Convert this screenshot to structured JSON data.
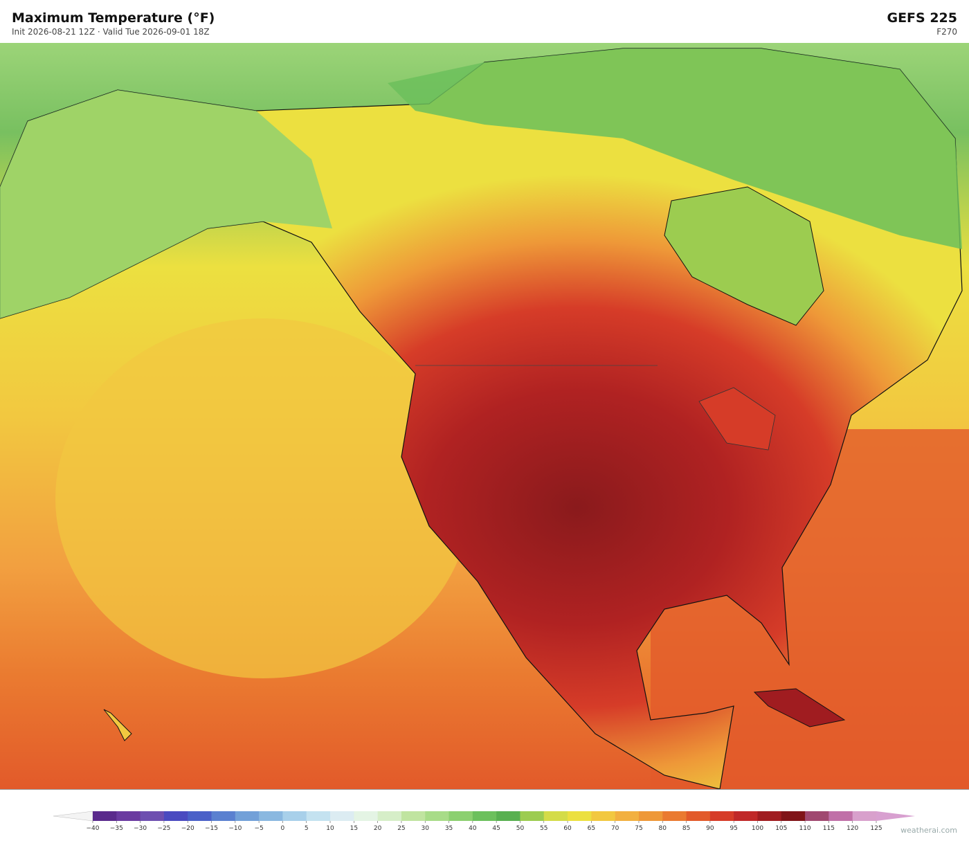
{
  "header": {
    "title": "Maximum Temperature  (°F)",
    "subtitle": "Init 2026-08-21 12Z   ·   Valid Tue 2026-09-01 18Z",
    "model": "GEFS  225",
    "forecast_hour": "F270"
  },
  "colorbar": {
    "labels": [
      "−40",
      "−35",
      "−30",
      "−25",
      "−20",
      "−15",
      "−10",
      "−5",
      "0",
      "5",
      "10",
      "15",
      "20",
      "25",
      "30",
      "35",
      "40",
      "45",
      "50",
      "55",
      "60",
      "65",
      "70",
      "75",
      "80",
      "85",
      "90",
      "95",
      "100",
      "105",
      "110",
      "115",
      "120",
      "125"
    ],
    "colors": [
      "#f4f4f4",
      "#5a2a8c",
      "#6a3aa0",
      "#6e4fb0",
      "#4a4ac0",
      "#4a60c8",
      "#5a80d0",
      "#72a0d8",
      "#8ab8e0",
      "#a8d0ea",
      "#c4e2f0",
      "#dcecf2",
      "#e4f4e4",
      "#d6eec8",
      "#c0e4a0",
      "#a8dc88",
      "#8cd070",
      "#6cc05c",
      "#58b050",
      "#9ccc50",
      "#d4dc48",
      "#ece040",
      "#f2c840",
      "#f2b040",
      "#ee9838",
      "#ea7a30",
      "#e25a2a",
      "#d63c28",
      "#c02828",
      "#a01c20",
      "#801418",
      "#a04870",
      "#c070a8",
      "#d8a0cc",
      "#d8a0d0"
    ]
  },
  "watermark": "weatherai.com"
}
